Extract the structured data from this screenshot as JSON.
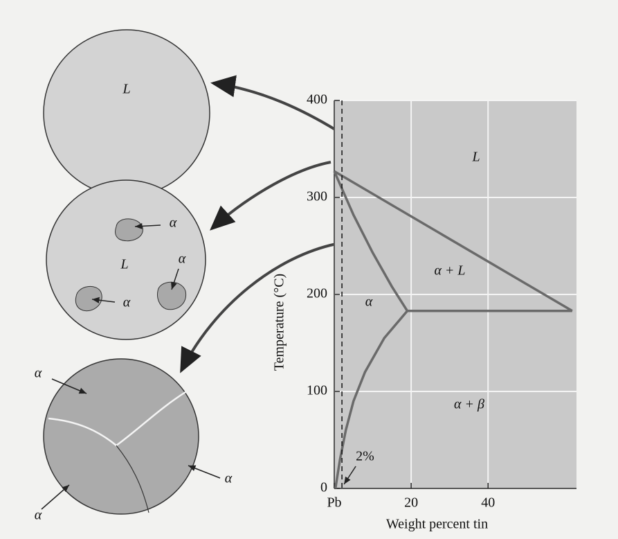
{
  "chart_data": {
    "type": "phase-diagram",
    "y_label": "Temperature (°C)",
    "x_label": "Weight percent tin",
    "xlim": [
      0,
      63
    ],
    "ylim": [
      0,
      400
    ],
    "xticks": [
      {
        "value": 0,
        "label": "Pb"
      },
      20,
      40
    ],
    "yticks": [
      0,
      100,
      200,
      300,
      400
    ],
    "grid": true,
    "series": [
      {
        "color": "#6a6a6a",
        "x": [
          0,
          61.9
        ],
        "values": [
          327,
          183
        ]
      },
      {
        "color": "#6a6a6a",
        "x": [
          0,
          5,
          10,
          15,
          19
        ],
        "values": [
          327,
          282,
          243,
          208,
          183
        ]
      },
      {
        "color": "#6a6a6a",
        "x": [
          19,
          61.9
        ],
        "values": [
          183,
          183
        ]
      },
      {
        "color": "#6a6a6a",
        "x": [
          19,
          13,
          8,
          5,
          3,
          1.5,
          0.3
        ],
        "values": [
          183,
          155,
          120,
          90,
          60,
          30,
          0
        ]
      }
    ],
    "composition_line": {
      "value": 2,
      "label": "2%"
    },
    "region_labels": [
      "L",
      "α + L",
      "α",
      "α + β"
    ],
    "microstructures": [
      {
        "labels": [
          "L"
        ]
      },
      {
        "labels": [
          "α",
          "L",
          "α",
          "α"
        ]
      },
      {
        "labels": [
          "α",
          "α",
          "α"
        ]
      }
    ]
  }
}
